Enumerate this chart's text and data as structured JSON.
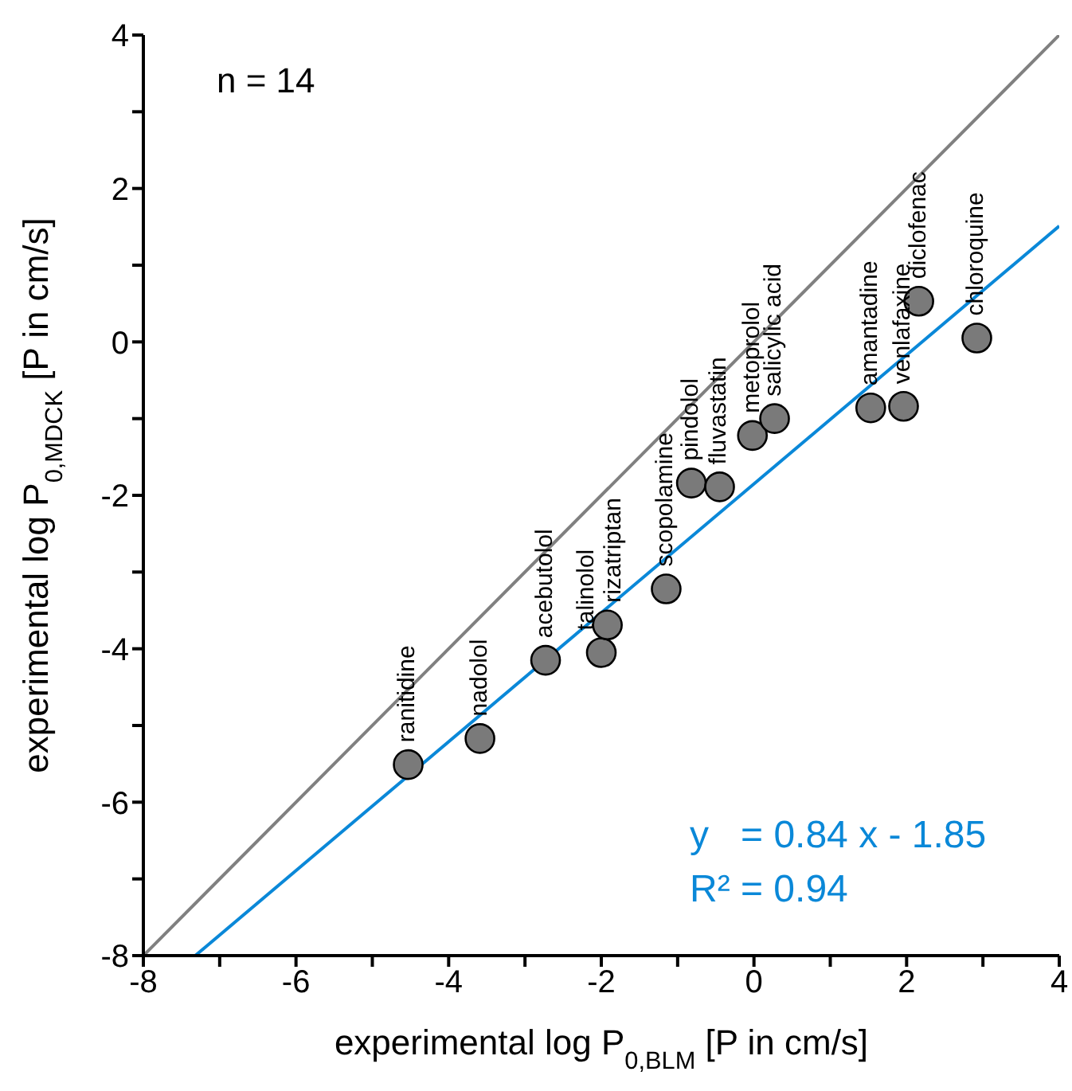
{
  "chart_data": {
    "type": "scatter",
    "xlabel": "experimental log P$_{0,BLM}$ [P in cm/s]",
    "ylabel": "experimental log P$_{0,MDCK}$ [P in cm/s]",
    "xlim": [
      -8,
      4
    ],
    "ylim": [
      -8,
      4
    ],
    "xticks": [
      -8,
      {
        "value": -7,
        "label": null
      },
      -6,
      {
        "value": -5,
        "label": null
      },
      -4,
      {
        "value": -3,
        "label": null
      },
      -2,
      {
        "value": -1,
        "label": null
      },
      0,
      {
        "value": 1,
        "label": null
      },
      2,
      {
        "value": 3,
        "label": null
      },
      4
    ],
    "yticks": [
      -8,
      {
        "value": -7,
        "label": null
      },
      -6,
      {
        "value": -5,
        "label": null
      },
      -4,
      {
        "value": -3,
        "label": null
      },
      -2,
      {
        "value": -1,
        "label": null
      },
      0,
      {
        "value": 1,
        "label": null
      },
      2,
      {
        "value": 3,
        "label": null
      },
      4
    ],
    "grid": false,
    "legend": false,
    "marker": "circle",
    "series": [
      {
        "color": "#7a7a7a",
        "x": [
          -4.53,
          -3.59,
          -2.73,
          -2.0,
          -1.92,
          -1.15,
          -0.82,
          -0.45,
          -0.02,
          0.27,
          1.53,
          1.96,
          2.16,
          2.92
        ],
        "values": [
          -5.51,
          -5.17,
          -4.15,
          -4.05,
          -3.69,
          -3.22,
          -1.84,
          -1.89,
          -1.22,
          -1.0,
          -0.86,
          -0.84,
          0.53,
          0.05
        ]
      },
      {
        "type": "line",
        "color": "#808080",
        "marker": "none",
        "x": [
          -8,
          4
        ],
        "values": [
          -8,
          4
        ]
      },
      {
        "type": "line",
        "color": "#0a88d8",
        "marker": "none",
        "x": [
          -7.32,
          4
        ],
        "values": [
          -8,
          1.51
        ]
      }
    ],
    "annotations": [
      "n = 14",
      "y   = 0.84 x - 1.85",
      "R² = 0.94",
      {
        "text": "ranitidine",
        "x": -4.53,
        "y": -5.51
      },
      {
        "text": "nadolol",
        "x": -3.59,
        "y": -5.17
      },
      {
        "text": "acebutolol",
        "x": -2.73,
        "y": -4.15
      },
      {
        "text": "talinolol",
        "x": -2.0,
        "y": -4.05
      },
      {
        "text": "rizatriptan",
        "x": -1.92,
        "y": -3.69
      },
      {
        "text": "scopolamine",
        "x": -1.15,
        "y": -3.22
      },
      {
        "text": "pindolol",
        "x": -0.82,
        "y": -1.84
      },
      {
        "text": "fluvastatin",
        "x": -0.45,
        "y": -1.89
      },
      {
        "text": "metoprolol",
        "x": -0.02,
        "y": -1.22
      },
      {
        "text": "salicylic acid",
        "x": 0.27,
        "y": -1.0
      },
      {
        "text": "amantadine",
        "x": 1.53,
        "y": -0.86
      },
      {
        "text": "venlafaxine",
        "x": 1.96,
        "y": -0.84
      },
      {
        "text": "diclofenac",
        "x": 2.16,
        "y": 0.53
      },
      {
        "text": "chloroquine",
        "x": 2.92,
        "y": 0.05
      }
    ]
  }
}
